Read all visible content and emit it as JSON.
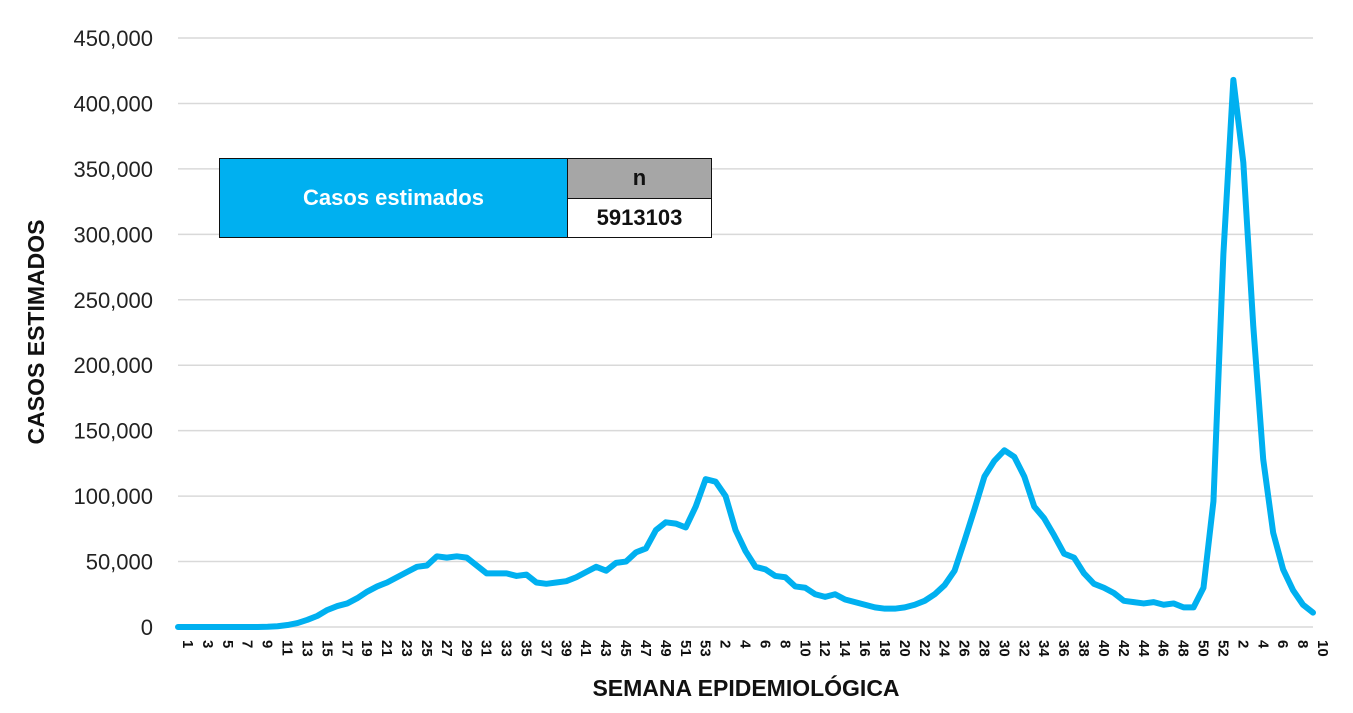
{
  "chart_data": {
    "type": "line",
    "xlabel": "SEMANA EPIDEMIOLÓGICA",
    "ylabel": "CASOS ESTIMADOS",
    "ylim": [
      0,
      450000
    ],
    "yticks": [
      "0",
      "50,000",
      "100,000",
      "150,000",
      "200,000",
      "250,000",
      "300,000",
      "350,000",
      "400,000",
      "450,000"
    ],
    "grid": true,
    "line_color": "#00b0f0",
    "x": [
      "1",
      "2",
      "3",
      "4",
      "5",
      "6",
      "7",
      "8",
      "9",
      "10",
      "11",
      "12",
      "13",
      "14",
      "15",
      "16",
      "17",
      "18",
      "19",
      "20",
      "21",
      "22",
      "23",
      "24",
      "25",
      "26",
      "27",
      "28",
      "29",
      "30",
      "31",
      "32",
      "33",
      "34",
      "35",
      "36",
      "37",
      "38",
      "39",
      "40",
      "41",
      "42",
      "43",
      "44",
      "45",
      "46",
      "47",
      "48",
      "49",
      "50",
      "51",
      "52",
      "53",
      "1",
      "2",
      "3",
      "4",
      "5",
      "6",
      "7",
      "8",
      "9",
      "10",
      "11",
      "12",
      "13",
      "14",
      "15",
      "16",
      "17",
      "18",
      "19",
      "20",
      "21",
      "22",
      "23",
      "24",
      "25",
      "26",
      "27",
      "28",
      "29",
      "30",
      "31",
      "32",
      "33",
      "34",
      "35",
      "36",
      "37",
      "38",
      "39",
      "40",
      "41",
      "42",
      "43",
      "44",
      "45",
      "46",
      "47",
      "48",
      "49",
      "50",
      "51",
      "52",
      "1",
      "2",
      "3",
      "4",
      "5",
      "6",
      "7",
      "8",
      "9",
      "10"
    ],
    "x_tick_labels": [
      "1",
      "3",
      "5",
      "7",
      "9",
      "11",
      "13",
      "15",
      "17",
      "19",
      "21",
      "23",
      "25",
      "27",
      "29",
      "31",
      "33",
      "35",
      "37",
      "39",
      "41",
      "43",
      "45",
      "47",
      "49",
      "51",
      "53",
      "2",
      "4",
      "6",
      "8",
      "10",
      "12",
      "14",
      "16",
      "18",
      "20",
      "22",
      "24",
      "26",
      "28",
      "30",
      "32",
      "34",
      "36",
      "38",
      "40",
      "42",
      "44",
      "46",
      "48",
      "50",
      "52",
      "2",
      "4",
      "6",
      "8",
      "10"
    ],
    "series": [
      {
        "values": [
          0,
          0,
          0,
          0,
          0,
          0,
          0,
          0,
          0,
          200,
          600,
          1500,
          3000,
          5500,
          8500,
          13000,
          16000,
          18000,
          22000,
          27000,
          31000,
          34000,
          38000,
          42000,
          46000,
          47000,
          54000,
          53000,
          54000,
          53000,
          47000,
          41000,
          41000,
          41000,
          39000,
          40000,
          34000,
          33000,
          34000,
          35000,
          38000,
          42000,
          46000,
          43000,
          49000,
          50000,
          57000,
          60000,
          74000,
          80000,
          79000,
          76000,
          92000,
          113000,
          111000,
          100000,
          74000,
          58000,
          46000,
          44000,
          39000,
          38000,
          31000,
          30000,
          25000,
          23000,
          25000,
          21000,
          19000,
          17000,
          15000,
          14000,
          14000,
          15000,
          17000,
          20000,
          25000,
          32000,
          43000,
          66000,
          90000,
          115000,
          127000,
          135000,
          130000,
          115000,
          92000,
          83000,
          70000,
          56000,
          53000,
          41000,
          33000,
          30000,
          26000,
          20000,
          19000,
          18000,
          19000,
          17000,
          18000,
          15000,
          15000,
          30000,
          96000,
          285000,
          418000,
          355000,
          230000,
          128000,
          72000,
          44000,
          28000,
          17000,
          11000
        ]
      }
    ],
    "legend_table": {
      "label": "Casos estimados",
      "header": "n",
      "value": "5913103"
    }
  }
}
